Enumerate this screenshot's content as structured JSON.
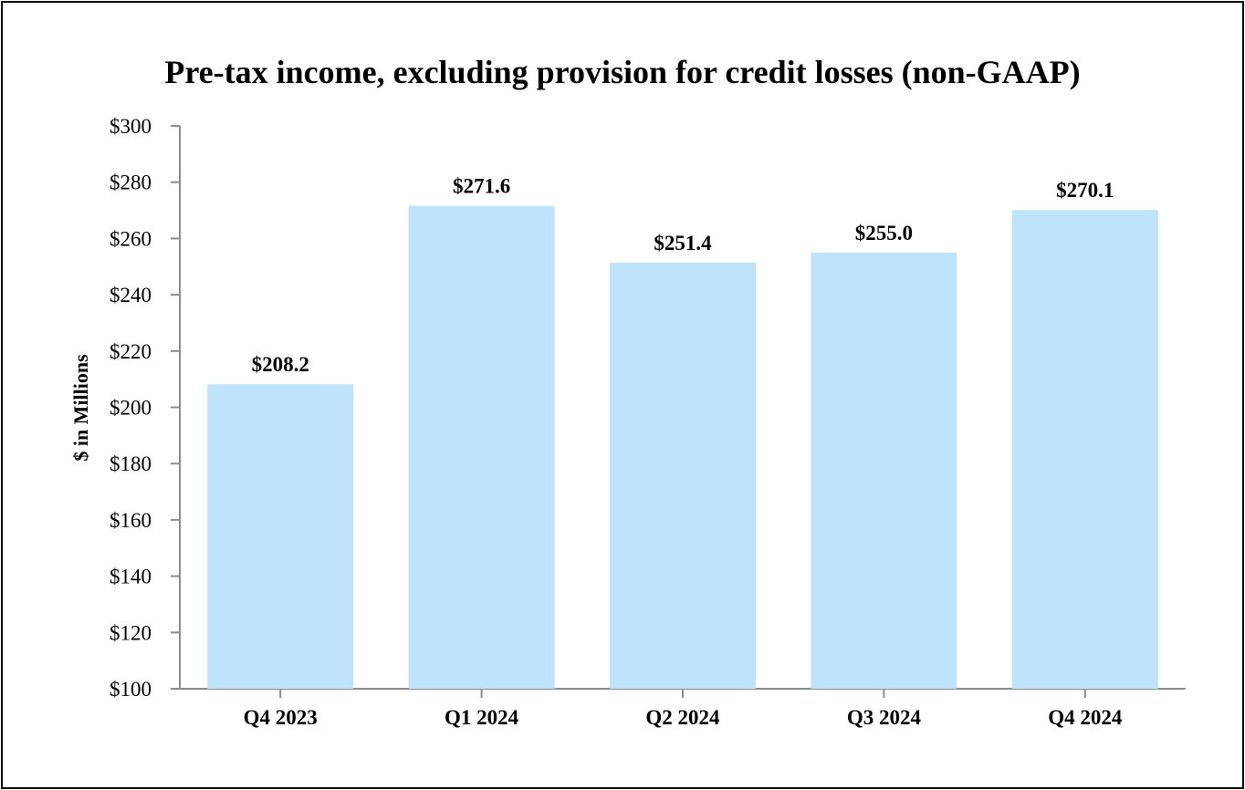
{
  "chart_data": {
    "type": "bar",
    "title": "Pre-tax income, excluding provision for credit losses (non-GAAP)",
    "xlabel": "",
    "ylabel": "$ in Millions",
    "categories": [
      "Q4 2023",
      "Q1 2024",
      "Q2 2024",
      "Q3 2024",
      "Q4 2024"
    ],
    "values": [
      208.2,
      271.6,
      251.4,
      255.0,
      270.1
    ],
    "data_labels": [
      "$208.2",
      "$271.6",
      "$251.4",
      "$255.0",
      "$270.1"
    ],
    "ylim": [
      100,
      300
    ],
    "yticks": [
      100,
      120,
      140,
      160,
      180,
      200,
      220,
      240,
      260,
      280,
      300
    ],
    "ytick_labels": [
      "$100",
      "$120",
      "$140",
      "$160",
      "$180",
      "$200",
      "$220",
      "$240",
      "$260",
      "$280",
      "$300"
    ],
    "bar_color": "#bfe3fb",
    "axis_color": "#8c8c8c",
    "grid": false,
    "legend": "none"
  }
}
